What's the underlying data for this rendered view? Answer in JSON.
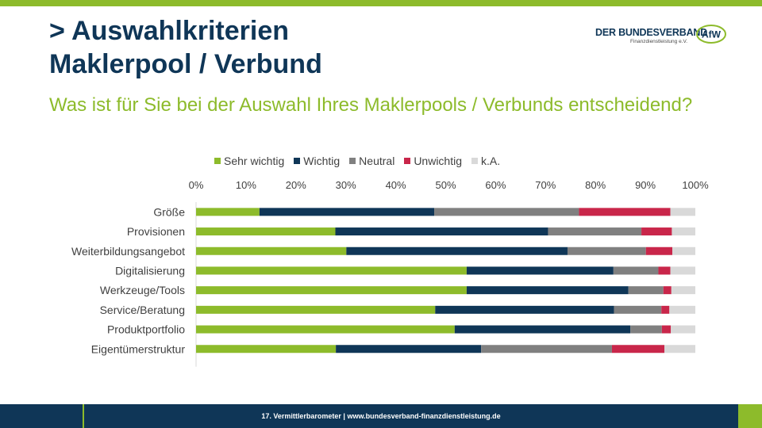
{
  "header": {
    "title_line1": "> Auswahlkriterien",
    "title_line2": "Maklerpool / Verbund",
    "subtitle": "Was ist für Sie bei der Auswahl Ihres Maklerpools / Verbunds entscheidend?"
  },
  "logo": {
    "name": "DER BUNDESVERBAND",
    "sub": "Finanzdienstleistung e.V.",
    "mark": "AfW"
  },
  "colors": {
    "green": "#8dbb2b",
    "navy": "#0f3657",
    "gray": "#808080",
    "red": "#c9264a",
    "lightgray": "#d9d9d9"
  },
  "chart_data": {
    "type": "bar",
    "orientation": "horizontal",
    "stacked": true,
    "percent": true,
    "title": "",
    "xlabel": "",
    "ylabel": "",
    "xlim": [
      0,
      100
    ],
    "ticks": [
      "0%",
      "10%",
      "20%",
      "30%",
      "40%",
      "50%",
      "60%",
      "70%",
      "80%",
      "90%",
      "100%"
    ],
    "legend_position": "top",
    "categories": [
      "Größe",
      "Provisionen",
      "Weiterbildungsangebot",
      "Digitalisierung",
      "Werkzeuge/Tools",
      "Service/Beratung",
      "Produktportfolio",
      "Eigentümerstruktur"
    ],
    "series": [
      {
        "name": "Sehr wichtig",
        "color": "#8dbb2b",
        "values": [
          12.7,
          27.9,
          30.1,
          54.2,
          54.2,
          47.9,
          51.8,
          28.0
        ]
      },
      {
        "name": "Wichtig",
        "color": "#0f3657",
        "values": [
          35.0,
          42.6,
          44.3,
          29.4,
          32.4,
          35.8,
          35.2,
          29.1
        ]
      },
      {
        "name": "Neutral",
        "color": "#808080",
        "values": [
          29.0,
          18.7,
          15.7,
          9.0,
          7.0,
          9.5,
          6.3,
          26.2
        ]
      },
      {
        "name": "Unwichtig",
        "color": "#c9264a",
        "values": [
          18.3,
          6.1,
          5.3,
          2.4,
          1.6,
          1.6,
          1.8,
          10.5
        ]
      },
      {
        "name": "k.A.",
        "color": "#d9d9d9",
        "values": [
          5.0,
          4.7,
          4.6,
          5.0,
          4.8,
          5.2,
          4.9,
          6.2
        ]
      }
    ]
  },
  "footer": {
    "text": "17. Vermittlerbarometer | www.bundesverband-finanzdienstleistung.de"
  }
}
